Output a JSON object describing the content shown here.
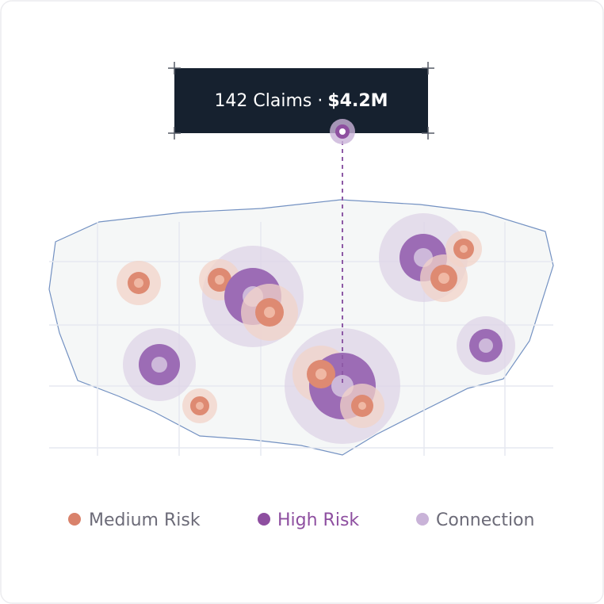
{
  "tooltip": {
    "claims": "142 Claims ·",
    "amount": "$4.2M"
  },
  "legend": [
    {
      "label": "Medium Risk"
    },
    {
      "label": "High Risk"
    },
    {
      "label": "Connection"
    }
  ]
}
